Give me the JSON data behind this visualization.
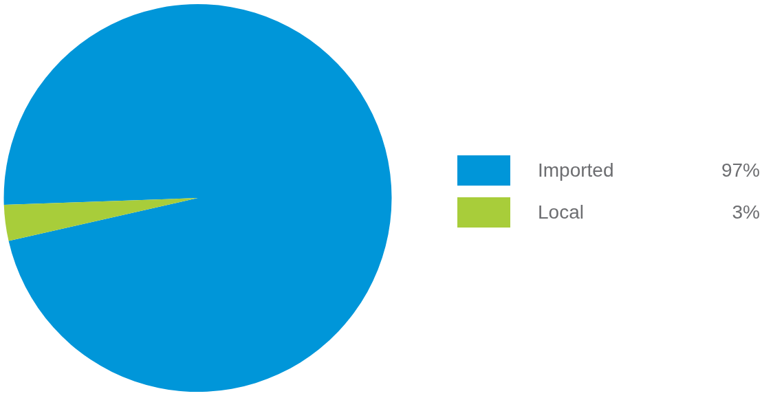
{
  "chart_data": {
    "type": "pie",
    "categories": [
      "Imported",
      "Local"
    ],
    "values": [
      97,
      3
    ],
    "colors": [
      "#0096d9",
      "#a8cd3a"
    ],
    "value_labels": [
      "97%",
      "3%"
    ],
    "legend": "right"
  }
}
